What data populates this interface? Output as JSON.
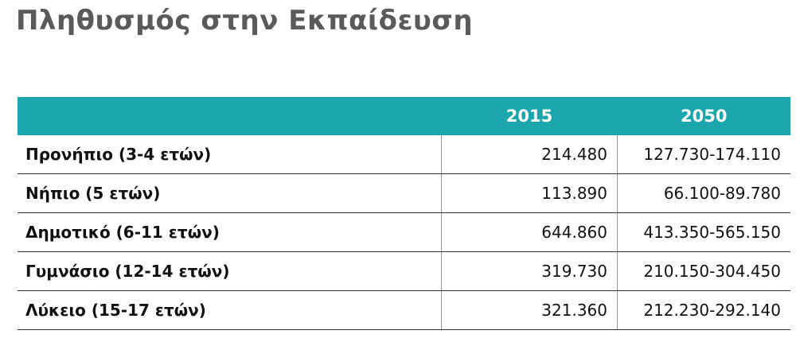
{
  "header": {
    "title": "Πληθυσμός στην Εκπαίδευση"
  },
  "table": {
    "columns": [
      "2015",
      "2050"
    ],
    "rows": [
      [
        "Προνήπιο (3-4 ετών)",
        "214.480",
        "127.730-174.110"
      ],
      [
        "Νήπιο (5 ετών)",
        "113.890",
        "66.100-89.780"
      ],
      [
        "Δημοτικό (6-11 ετών)",
        "644.860",
        "413.350-565.150"
      ],
      [
        "Γυμνάσιο (12-14 ετών)",
        "319.730",
        "210.150-304.450"
      ],
      [
        "Λύκειο (15-17 ετών)",
        "321.360",
        "212.230-292.140"
      ]
    ]
  }
}
